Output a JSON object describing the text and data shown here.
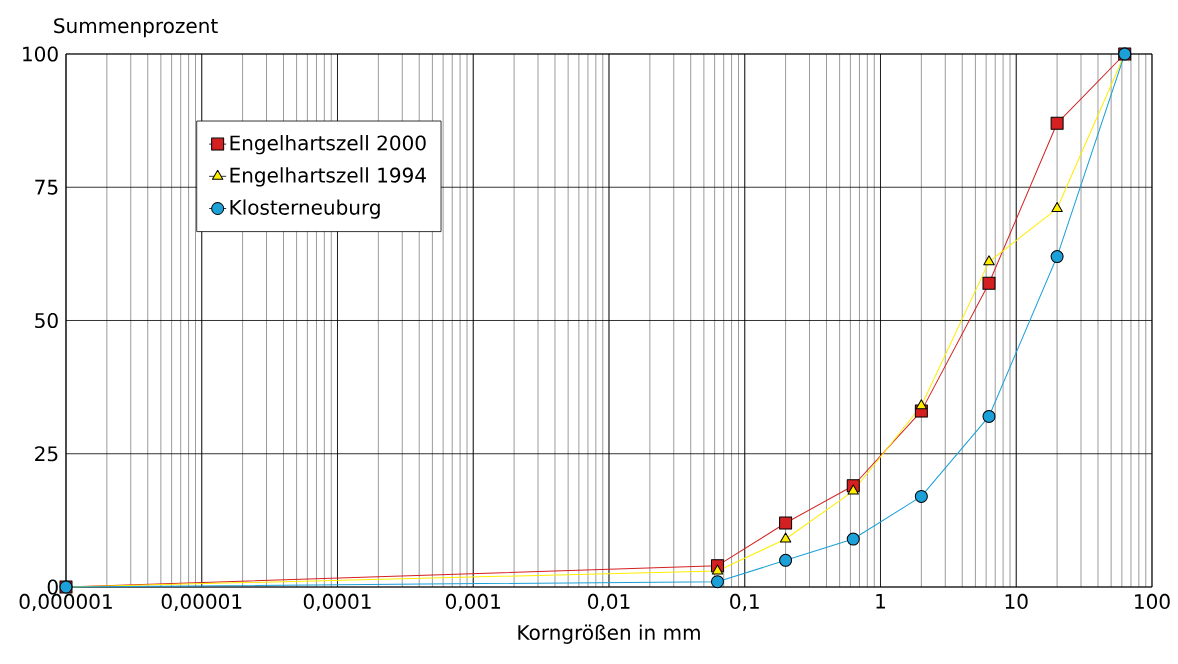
{
  "chart_data": {
    "type": "line",
    "xlabel": "Korngrößen in mm",
    "ylabel": "Summenprozent",
    "log": "x",
    "grid": true,
    "legend": "top left",
    "xlim": [
      1e-06,
      100
    ],
    "ylim": [
      0,
      100
    ],
    "xticks": [
      {
        "value": 1e-06,
        "label": "0,000001"
      },
      {
        "value": 1e-05,
        "label": "0,00001"
      },
      {
        "value": 0.0001,
        "label": "0,0001"
      },
      {
        "value": 0.001,
        "label": "0,001"
      },
      {
        "value": 0.01,
        "label": "0,01"
      },
      {
        "value": 0.1,
        "label": "0,1"
      },
      1,
      10,
      100
    ],
    "yticks": [
      0,
      25,
      50,
      75,
      100
    ],
    "x": [
      1e-06,
      0.063,
      0.2,
      0.63,
      2,
      6.3,
      20,
      63
    ],
    "series": [
      {
        "name": "Engelhartszell  2000",
        "color": "#d42020",
        "marker": "square",
        "values": [
          0,
          4,
          12,
          19,
          33,
          57,
          87,
          100
        ]
      },
      {
        "name": "Engelhartszell  1994",
        "color": "#ffee00",
        "marker": "triangle",
        "values": [
          0,
          3,
          9,
          18,
          34,
          61,
          71,
          100
        ]
      },
      {
        "name": "Klosterneuburg",
        "color": "#1ca0d8",
        "marker": "circle",
        "values": [
          0,
          1,
          5,
          9,
          17,
          32,
          62,
          100
        ]
      }
    ]
  }
}
